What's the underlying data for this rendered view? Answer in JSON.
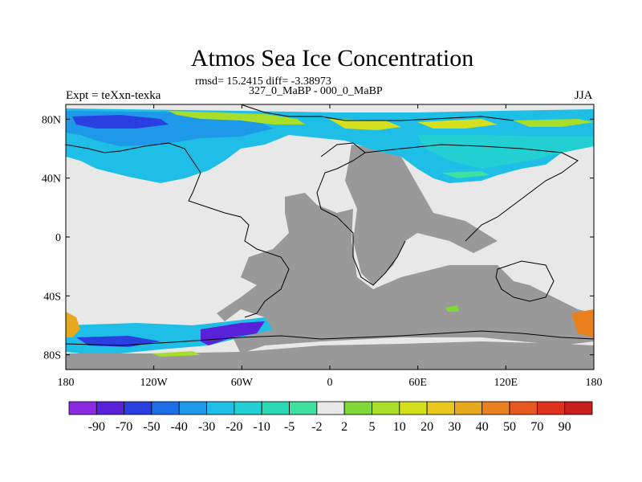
{
  "chart_data": {
    "type": "heatmap",
    "title": "Atmos Sea Ice Concentration",
    "stats": "rmsd= 15.2415 diff= -3.38973",
    "subtitle": "327_0_MaBP - 000_0_MaBP",
    "left_label": "Expt = teXxn-texka",
    "right_label": "JJA",
    "x_range": [
      -180,
      180
    ],
    "y_range": [
      -90,
      90
    ],
    "x_ticks": [
      {
        "value": -180,
        "label": "180"
      },
      {
        "value": -120,
        "label": "120W"
      },
      {
        "value": -60,
        "label": "60W"
      },
      {
        "value": 0,
        "label": "0"
      },
      {
        "value": 60,
        "label": "60E"
      },
      {
        "value": 120,
        "label": "120E"
      },
      {
        "value": 180,
        "label": "180"
      }
    ],
    "y_ticks": [
      {
        "value": 80,
        "label": "80N"
      },
      {
        "value": 40,
        "label": "40N"
      },
      {
        "value": 0,
        "label": "0"
      },
      {
        "value": -40,
        "label": "40S"
      },
      {
        "value": -80,
        "label": "80S"
      }
    ],
    "colorbar": {
      "labels": [
        "-90",
        "-70",
        "-50",
        "-40",
        "-30",
        "-20",
        "-10",
        "-5",
        "-2",
        "2",
        "5",
        "10",
        "20",
        "30",
        "40",
        "50",
        "70",
        "90"
      ],
      "colors": [
        "#8a2be2",
        "#5a22d8",
        "#2a3fe0",
        "#1e6ee8",
        "#1e98e8",
        "#1ebee6",
        "#22cfd2",
        "#2ad8b4",
        "#40e0a0",
        "#e8e8e8",
        "#7ed838",
        "#a8de2a",
        "#d4e01e",
        "#e8c81e",
        "#e8a81e",
        "#e8801e",
        "#e8581e",
        "#e0301e",
        "#c81e1e"
      ]
    },
    "land_color": "#999999",
    "nodata_color": "#e8e8e8",
    "regions": [
      {
        "name": "arctic-decrease-west",
        "value": -10
      },
      {
        "name": "arctic-strong-decrease",
        "value": -40
      },
      {
        "name": "arctic-increase-band",
        "value": 10
      },
      {
        "name": "antarctic-strong-decrease",
        "value": -70
      },
      {
        "name": "antarctic-increase-pacific",
        "value": 50
      },
      {
        "name": "antarctic-increase-east",
        "value": 40
      }
    ]
  }
}
